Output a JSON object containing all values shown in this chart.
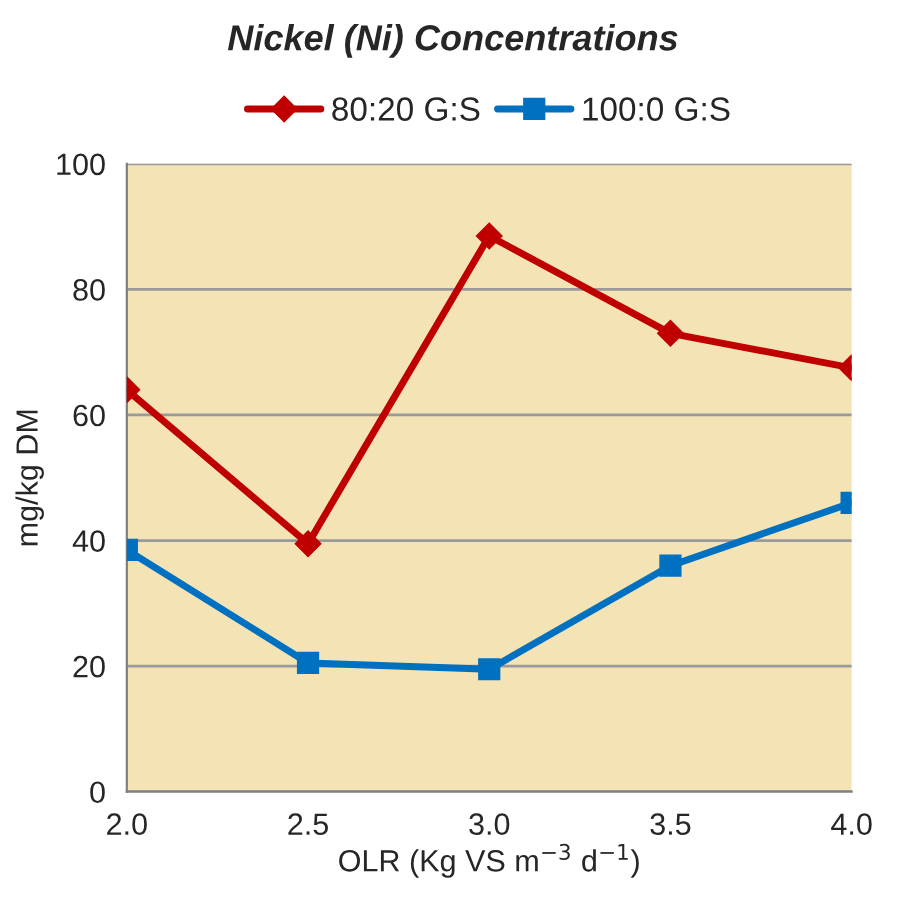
{
  "chart_data": {
    "type": "line",
    "title": "Nickel (Ni) Concentrations",
    "xlabel": "OLR (Kg VS m$^{−3}$ d$^{−1}$)",
    "ylabel": "mg/kg DM",
    "x": [
      2.0,
      2.5,
      3.0,
      3.5,
      4.0
    ],
    "series": [
      {
        "name": "80:20 G:S",
        "color": "#c00000",
        "marker": "diamond",
        "values": [
          64,
          39.5,
          88.5,
          73,
          67.5
        ]
      },
      {
        "name": "100:0 G:S",
        "color": "#0070c0",
        "marker": "square",
        "values": [
          38.5,
          20.5,
          19.5,
          36,
          46
        ]
      }
    ],
    "xlim": [
      2.0,
      4.0
    ],
    "xticks": [
      {
        "value": 2.0,
        "label": "2.0"
      },
      {
        "value": 2.5,
        "label": "2.5"
      },
      {
        "value": 3.0,
        "label": "3.0"
      },
      {
        "value": 3.5,
        "label": "3.5"
      },
      {
        "value": 4.0,
        "label": "4.0"
      }
    ],
    "ylim": [
      0,
      100
    ],
    "yticks": [
      0,
      20,
      40,
      60,
      80,
      100
    ],
    "grid": "y",
    "legend": "top",
    "line_style": "solid"
  }
}
